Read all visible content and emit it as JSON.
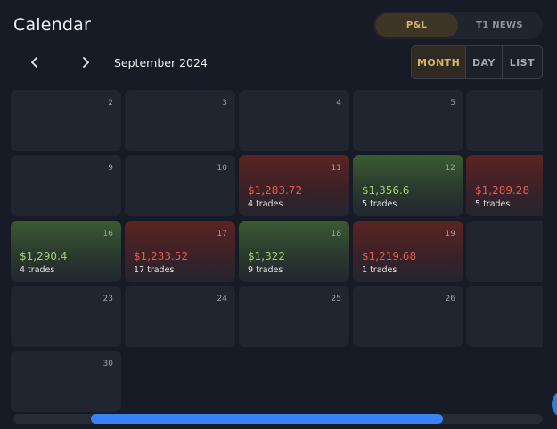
{
  "header": {
    "title": "Calendar",
    "view_toggle": [
      {
        "label": "P&L",
        "active": true
      },
      {
        "label": "T1 NEWS",
        "active": false
      }
    ]
  },
  "navigation": {
    "prev_icon": "chevron-left-icon",
    "next_icon": "chevron-right-icon",
    "month_label": "September 2024",
    "modes": [
      {
        "label": "MONTH",
        "active": true
      },
      {
        "label": "DAY",
        "active": false
      },
      {
        "label": "LIST",
        "active": false
      }
    ]
  },
  "colors": {
    "loss": "#ef5a4c",
    "profit": "#9fd36a",
    "accent": "#d8b46a",
    "scroll": "#3b82f6"
  },
  "weeks": [
    [
      {
        "day": "2"
      },
      {
        "day": "3"
      },
      {
        "day": "4"
      },
      {
        "day": "5"
      },
      {
        "day": ""
      }
    ],
    [
      {
        "day": "9"
      },
      {
        "day": "10"
      },
      {
        "day": "11",
        "amount": "$1,283.72",
        "trades": "4 trades",
        "result": "loss"
      },
      {
        "day": "12",
        "amount": "$1,356.6",
        "trades": "5 trades",
        "result": "profit"
      },
      {
        "day": "",
        "amount": "$1,289.28",
        "trades": "5 trades",
        "result": "loss"
      }
    ],
    [
      {
        "day": "16",
        "amount": "$1,290.4",
        "trades": "4 trades",
        "result": "profit"
      },
      {
        "day": "17",
        "amount": "$1,233.52",
        "trades": "17 trades",
        "result": "loss"
      },
      {
        "day": "18",
        "amount": "$1,322",
        "trades": "9 trades",
        "result": "profit"
      },
      {
        "day": "19",
        "amount": "$1,219.68",
        "trades": "1 trades",
        "result": "loss"
      },
      {
        "day": ""
      }
    ],
    [
      {
        "day": "23"
      },
      {
        "day": "24"
      },
      {
        "day": "25"
      },
      {
        "day": "26"
      },
      {
        "day": ""
      }
    ],
    [
      {
        "day": "30"
      }
    ]
  ]
}
